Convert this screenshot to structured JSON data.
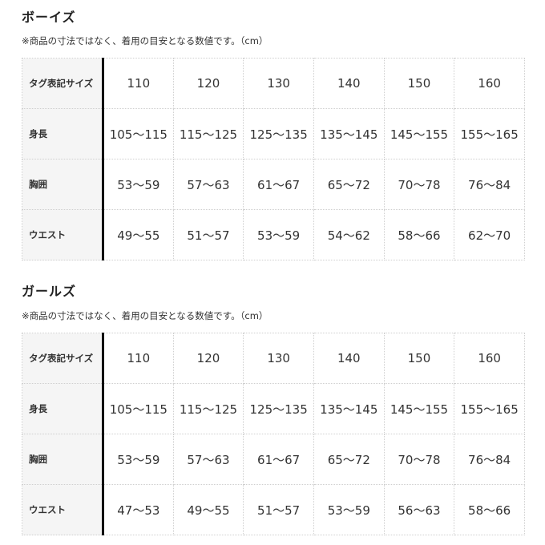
{
  "sections": [
    {
      "title": "ボーイズ",
      "note": "※商品の寸法ではなく、着用の目安となる数値です。（cm）",
      "rows": [
        {
          "label": "タグ表記サイズ",
          "values": [
            "110",
            "120",
            "130",
            "140",
            "150",
            "160"
          ]
        },
        {
          "label": "身長",
          "values": [
            "105〜115",
            "115〜125",
            "125〜135",
            "135〜145",
            "145〜155",
            "155〜165"
          ]
        },
        {
          "label": "胸囲",
          "values": [
            "53〜59",
            "57〜63",
            "61〜67",
            "65〜72",
            "70〜78",
            "76〜84"
          ]
        },
        {
          "label": "ウエスト",
          "values": [
            "49〜55",
            "51〜57",
            "53〜59",
            "54〜62",
            "58〜66",
            "62〜70"
          ]
        }
      ]
    },
    {
      "title": "ガールズ",
      "note": "※商品の寸法ではなく、着用の目安となる数値です。（cm）",
      "rows": [
        {
          "label": "タグ表記サイズ",
          "values": [
            "110",
            "120",
            "130",
            "140",
            "150",
            "160"
          ]
        },
        {
          "label": "身長",
          "values": [
            "105〜115",
            "115〜125",
            "125〜135",
            "135〜145",
            "145〜155",
            "155〜165"
          ]
        },
        {
          "label": "胸囲",
          "values": [
            "53〜59",
            "57〜63",
            "61〜67",
            "65〜72",
            "70〜78",
            "76〜84"
          ]
        },
        {
          "label": "ウエスト",
          "values": [
            "47〜53",
            "49〜55",
            "51〜57",
            "53〜59",
            "56〜63",
            "58〜66"
          ]
        }
      ]
    }
  ]
}
